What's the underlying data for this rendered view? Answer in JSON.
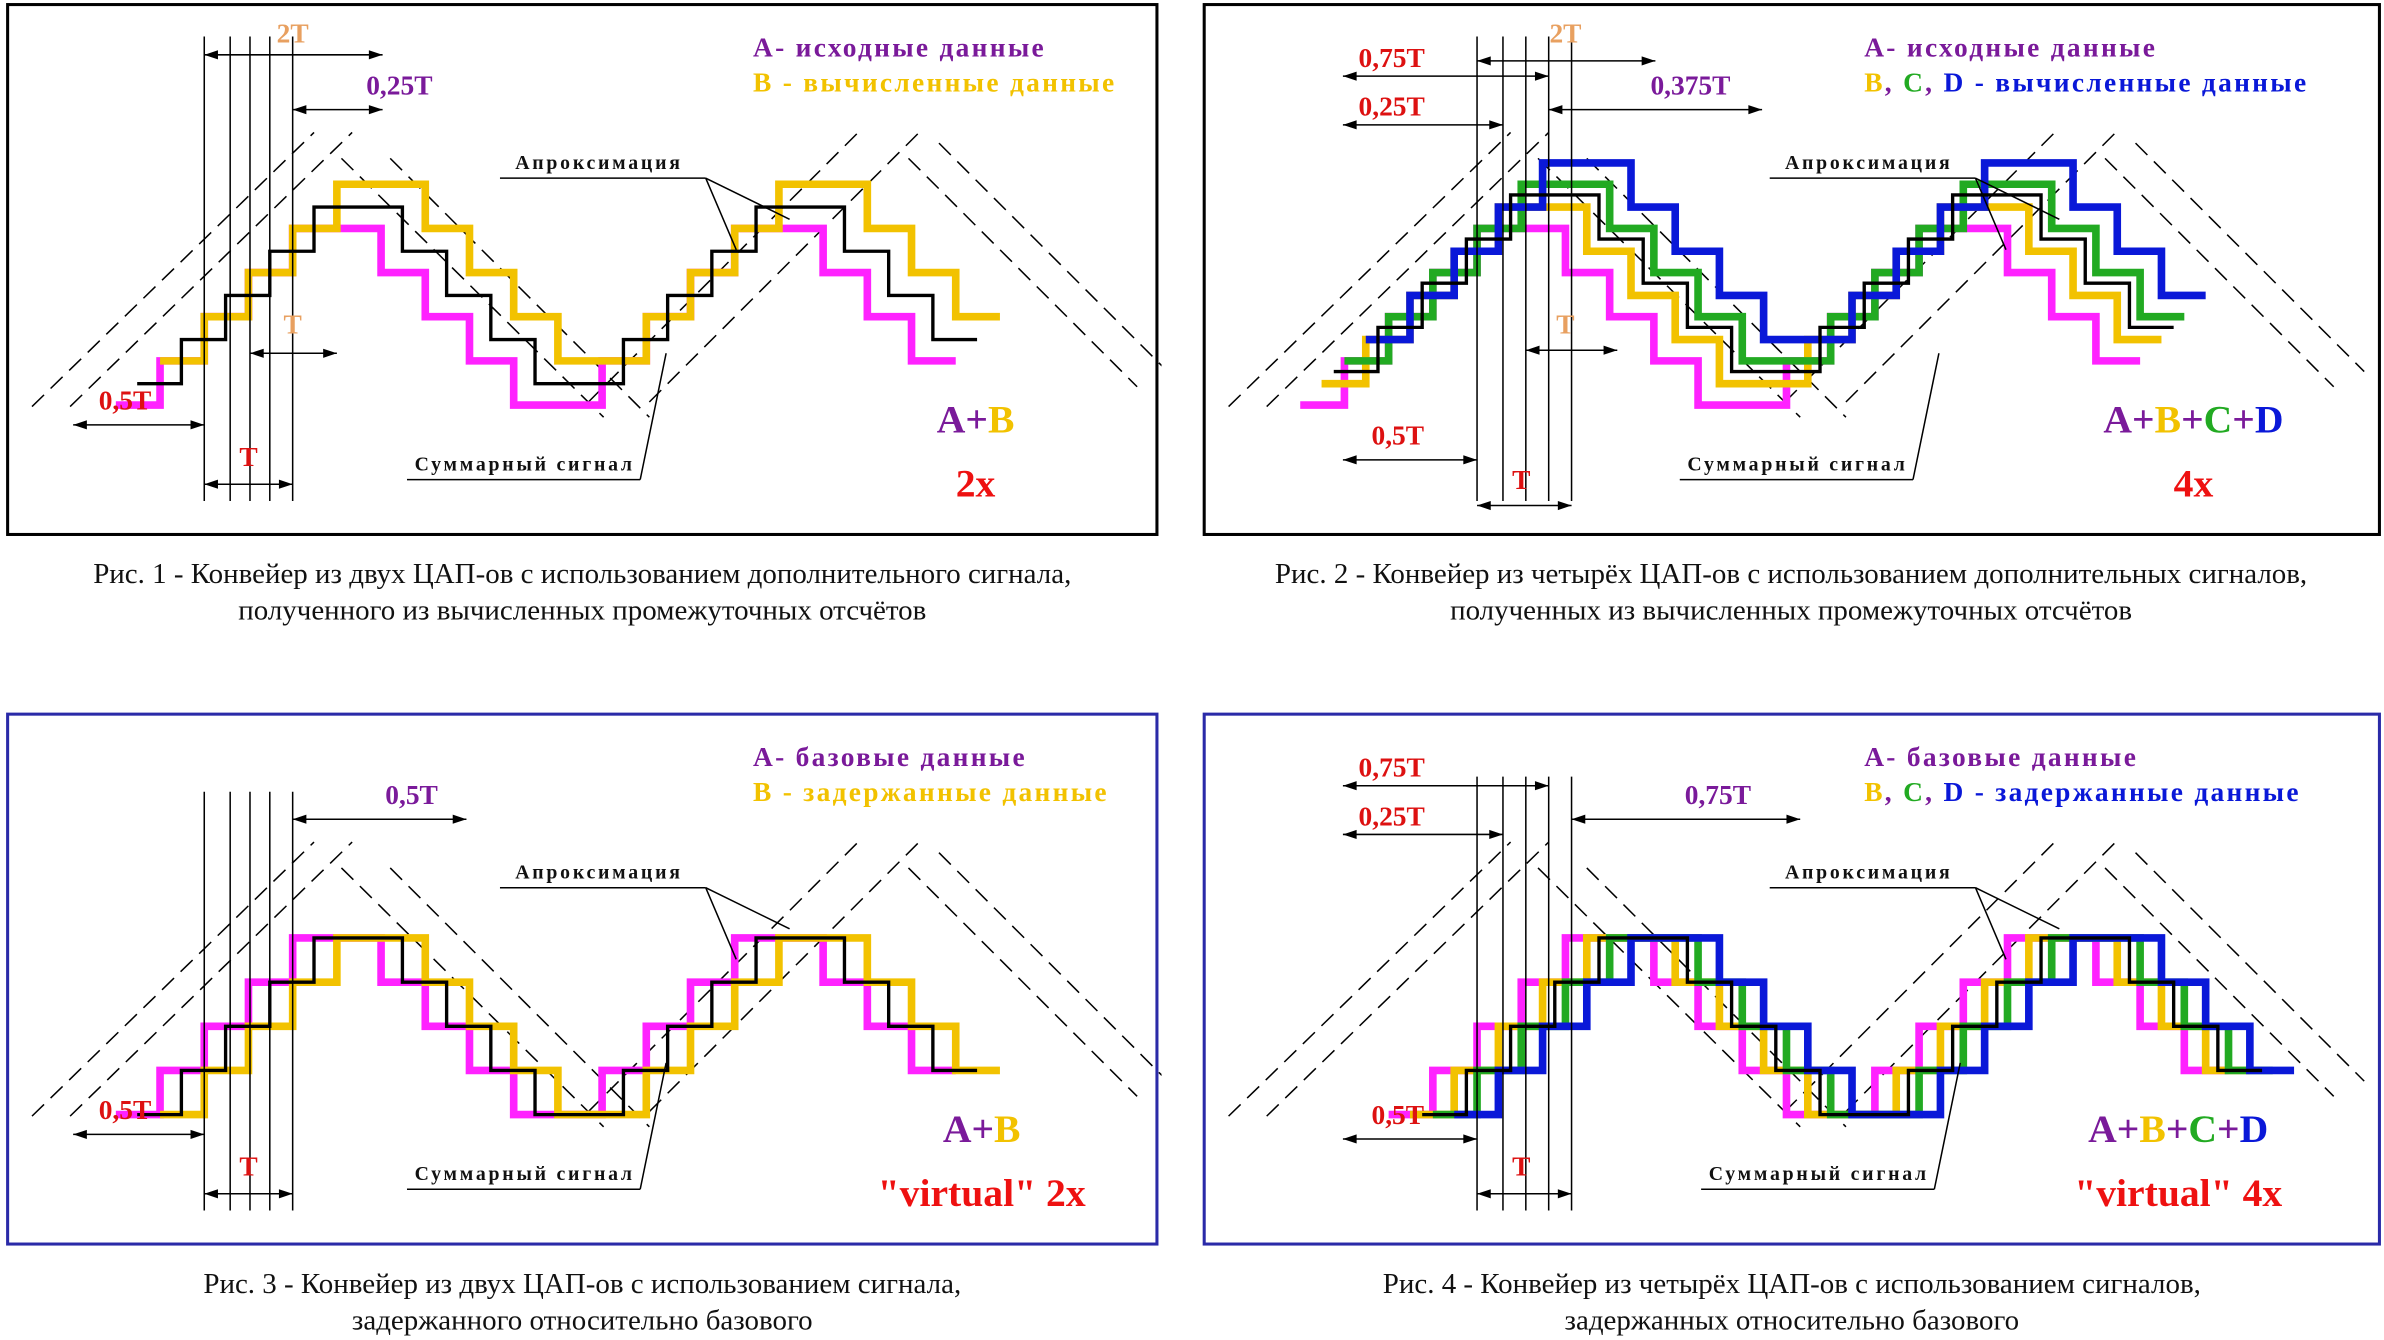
{
  "colors": {
    "A": "#ff22ff",
    "B": "#f2c200",
    "C": "#22aa22",
    "D": "#0a18d8",
    "sum": "#000000",
    "red_labels": "#dd1111",
    "orange_labels": "#e8a060",
    "legend_A": "#7a1a9a"
  },
  "panels": [
    {
      "id": "fig1",
      "border": "black",
      "legend_line1": {
        "key": "A",
        "text": "- исходные данные"
      },
      "legend_line2": [
        {
          "key": "B",
          "text": "B",
          "color": "B"
        }
      ],
      "legend_line2_text": " - вычисленные данные",
      "formula": [
        {
          "text": "A",
          "color": "legend_A"
        },
        {
          "text": "+",
          "color": "legend_A"
        },
        {
          "text": "B",
          "color": "B"
        }
      ],
      "multiplier": "2x",
      "approx_label": "Апроксимация",
      "sum_label": "Суммарный сигнал",
      "dims": {
        "top": "2T",
        "shift": "0,25T",
        "mid": "T",
        "half": "0,5T",
        "period": "T"
      },
      "series": [
        "A",
        "B"
      ]
    },
    {
      "id": "fig2",
      "border": "black",
      "legend_line1": {
        "key": "A",
        "text": "- исходные данные"
      },
      "legend_line2": [
        {
          "text": "B",
          "color": "B"
        },
        {
          "text": ", ",
          "color": "legend_A"
        },
        {
          "text": "C",
          "color": "C"
        },
        {
          "text": ", ",
          "color": "legend_A"
        },
        {
          "text": "D",
          "color": "D"
        }
      ],
      "legend_line2_text": " - вычисленные данные",
      "formula": [
        {
          "text": "A",
          "color": "legend_A"
        },
        {
          "text": "+",
          "color": "legend_A"
        },
        {
          "text": "B",
          "color": "B"
        },
        {
          "text": "+",
          "color": "legend_A"
        },
        {
          "text": "C",
          "color": "C"
        },
        {
          "text": "+",
          "color": "legend_A"
        },
        {
          "text": "D",
          "color": "D"
        }
      ],
      "multiplier": "4x",
      "approx_label": "Апроксимация",
      "sum_label": "Суммарный сигнал",
      "dims": {
        "top": "2T",
        "shift": "0,375T",
        "left1": "0,75T",
        "left2": "0,25T",
        "mid": "T",
        "half": "0,5T",
        "period": "T"
      },
      "series": [
        "A",
        "B",
        "C",
        "D"
      ]
    },
    {
      "id": "fig3",
      "border": "blue",
      "legend_line1": {
        "key": "A",
        "text": "- базовые данные"
      },
      "legend_line2": [
        {
          "text": "B",
          "color": "B"
        }
      ],
      "legend_line2_text": " - задержанные данные",
      "formula": [
        {
          "text": "A",
          "color": "legend_A"
        },
        {
          "text": "+",
          "color": "legend_A"
        },
        {
          "text": "B",
          "color": "B"
        }
      ],
      "multiplier": "\"virtual\" 2x",
      "approx_label": "Апроксимация",
      "sum_label": "Суммарный сигнал",
      "dims": {
        "shift": "0,5T",
        "half": "0,5T",
        "period": "T"
      },
      "series": [
        "A",
        "B"
      ]
    },
    {
      "id": "fig4",
      "border": "blue",
      "legend_line1": {
        "key": "A",
        "text": "- базовые данные"
      },
      "legend_line2": [
        {
          "text": "B",
          "color": "B"
        },
        {
          "text": ", ",
          "color": "legend_A"
        },
        {
          "text": "C",
          "color": "C"
        },
        {
          "text": ", ",
          "color": "legend_A"
        },
        {
          "text": "D",
          "color": "D"
        }
      ],
      "legend_line2_text": " - задержанные данные",
      "formula": [
        {
          "text": "A",
          "color": "legend_A"
        },
        {
          "text": "+",
          "color": "legend_A"
        },
        {
          "text": "B",
          "color": "B"
        },
        {
          "text": "+",
          "color": "legend_A"
        },
        {
          "text": "C",
          "color": "C"
        },
        {
          "text": "+",
          "color": "legend_A"
        },
        {
          "text": "D",
          "color": "D"
        }
      ],
      "multiplier": "\"virtual\" 4x",
      "approx_label": "Апроксимация",
      "sum_label": "Суммарный сигнал",
      "dims": {
        "shift": "0,75T",
        "left1": "0,75T",
        "left2": "0,25T",
        "half": "0,5T",
        "period": "T"
      },
      "series": [
        "A",
        "B",
        "C",
        "D"
      ]
    }
  ],
  "captions": {
    "fig1": {
      "line1": "Рис. 1 - Конвейер из двух ЦАП-ов с использованием дополнительного сигнала,",
      "line2": "полученного из вычисленных промежуточных отсчётов"
    },
    "fig2": {
      "line1": "Рис. 2 - Конвейер из четырёх ЦАП-ов с использованием дополнительных сигналов,",
      "line2": "полученных из вычисленных промежуточных отсчётов"
    },
    "fig3": {
      "line1": "Рис. 3 - Конвейер из двух ЦАП-ов с использованием сигнала,",
      "line2": "задержанного относительно базового"
    },
    "fig4": {
      "line1": "Рис. 4 - Конвейер из четырёх ЦАП-ов с использованием сигналов,",
      "line2": "задержанных относительно базового"
    }
  }
}
